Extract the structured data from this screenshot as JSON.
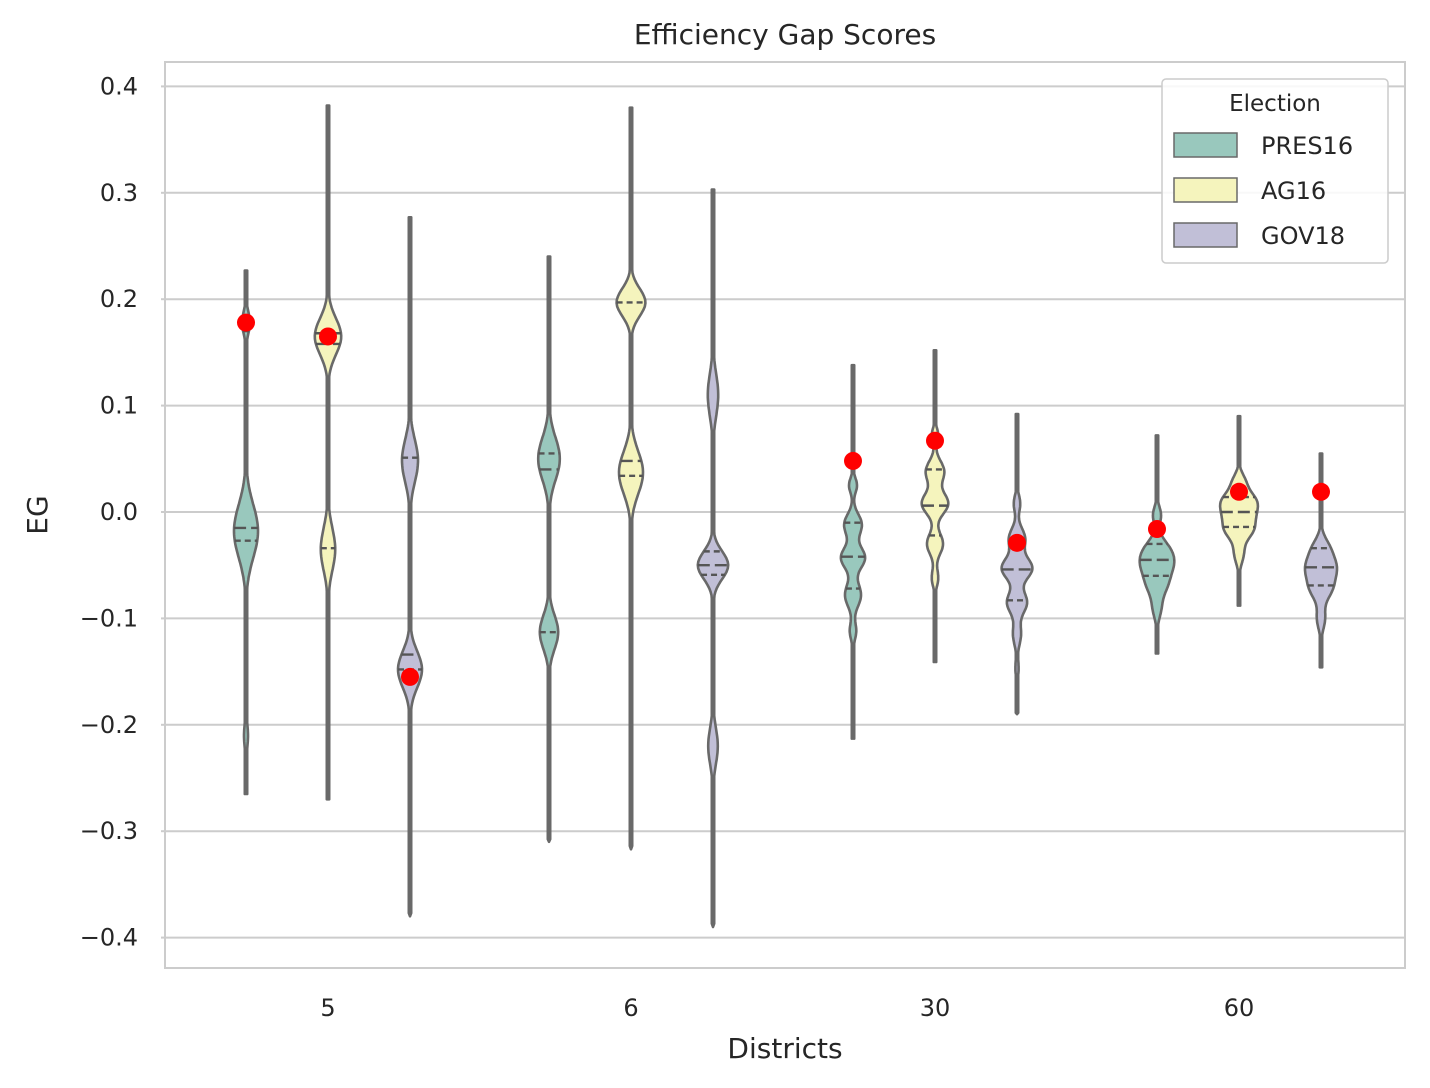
{
  "chart_data": {
    "type": "violin",
    "title": "Efficiency Gap Scores",
    "xlabel": "Districts",
    "ylabel": "EG",
    "categories": [
      "5",
      "6",
      "30",
      "60"
    ],
    "ylim": [
      -0.43,
      0.42
    ],
    "yticks": [
      -0.4,
      -0.3,
      -0.2,
      -0.1,
      0.0,
      0.1,
      0.2,
      0.3,
      0.4
    ],
    "ytick_labels": [
      "−0.4",
      "−0.3",
      "−0.2",
      "−0.1",
      "0.0",
      "0.1",
      "0.2",
      "0.3",
      "0.4"
    ],
    "grid": true,
    "legend": {
      "title": "Election",
      "placement": "top-right"
    },
    "series": [
      {
        "name": "PRES16",
        "color": "#99c8bd",
        "violins": [
          {
            "min": -0.265,
            "max": 0.227,
            "q1": -0.027,
            "median": -0.015,
            "q3": 0.17,
            "modes": [
              [
                0.178,
                0.1,
                0.01
              ],
              [
                -0.018,
                0.3,
                0.025
              ],
              [
                -0.21,
                0.05,
                0.012
              ]
            ],
            "marker": 0.178
          },
          {
            "min": -0.31,
            "max": 0.24,
            "q1": -0.113,
            "median": 0.04,
            "q3": 0.055,
            "modes": [
              [
                0.05,
                0.27,
                0.02
              ],
              [
                -0.113,
                0.23,
                0.016
              ],
              [
                0.215,
                0.02,
                0.008
              ]
            ],
            "marker": null
          },
          {
            "min": -0.213,
            "max": 0.138,
            "q1": -0.072,
            "median": -0.042,
            "q3": -0.01,
            "modes": [
              [
                0.025,
                0.1,
                0.007
              ],
              [
                -0.012,
                0.22,
                0.01
              ],
              [
                -0.043,
                0.3,
                0.01
              ],
              [
                -0.078,
                0.2,
                0.011
              ],
              [
                -0.112,
                0.08,
                0.008
              ]
            ],
            "marker": 0.048
          },
          {
            "min": -0.133,
            "max": 0.072,
            "q1": -0.06,
            "median": -0.045,
            "q3": -0.03,
            "modes": [
              [
                -0.003,
                0.1,
                0.008
              ],
              [
                -0.035,
                0.25,
                0.01
              ],
              [
                -0.05,
                0.3,
                0.01
              ],
              [
                -0.068,
                0.22,
                0.01
              ],
              [
                -0.09,
                0.1,
                0.01
              ]
            ],
            "marker": -0.016
          }
        ]
      },
      {
        "name": "AG16",
        "color": "#f5f4bd",
        "violins": [
          {
            "min": -0.27,
            "max": 0.382,
            "q1": -0.034,
            "median": 0.158,
            "q3": 0.168,
            "modes": [
              [
                0.165,
                0.33,
                0.017
              ],
              [
                -0.035,
                0.18,
                0.02
              ],
              [
                -0.23,
                0.02,
                0.01
              ]
            ],
            "marker": 0.165
          },
          {
            "min": -0.317,
            "max": 0.38,
            "q1": 0.034,
            "median": 0.048,
            "q3": 0.197,
            "modes": [
              [
                0.197,
                0.36,
                0.013
              ],
              [
                0.037,
                0.3,
                0.02
              ],
              [
                -0.125,
                0.02,
                0.012
              ]
            ],
            "marker": null
          },
          {
            "min": -0.141,
            "max": 0.152,
            "q1": -0.022,
            "median": 0.006,
            "q3": 0.04,
            "modes": [
              [
                0.072,
                0.08,
                0.007
              ],
              [
                0.038,
                0.23,
                0.01
              ],
              [
                0.008,
                0.33,
                0.01
              ],
              [
                -0.03,
                0.2,
                0.01
              ],
              [
                -0.062,
                0.08,
                0.008
              ]
            ],
            "marker": 0.067
          },
          {
            "min": -0.088,
            "max": 0.09,
            "q1": -0.014,
            "median": 0.0,
            "q3": 0.014,
            "modes": [
              [
                0.028,
                0.15,
                0.008
              ],
              [
                0.012,
                0.28,
                0.008
              ],
              [
                -0.002,
                0.35,
                0.01
              ],
              [
                -0.018,
                0.25,
                0.008
              ],
              [
                -0.038,
                0.12,
                0.01
              ]
            ],
            "marker": 0.019
          }
        ]
      },
      {
        "name": "GOV18",
        "color": "#c1bfd7",
        "violins": [
          {
            "min": -0.38,
            "max": 0.277,
            "q1": -0.148,
            "median": -0.134,
            "q3": 0.051,
            "modes": [
              [
                0.048,
                0.2,
                0.02
              ],
              [
                -0.148,
                0.3,
                0.017
              ],
              [
                0.24,
                0.03,
                0.015
              ],
              [
                -0.34,
                0.01,
                0.015
              ]
            ],
            "marker": -0.155
          },
          {
            "min": -0.39,
            "max": 0.303,
            "q1": -0.059,
            "median": -0.05,
            "q3": -0.037,
            "modes": [
              [
                -0.05,
                0.38,
                0.013
              ],
              [
                0.11,
                0.13,
                0.02
              ],
              [
                -0.22,
                0.12,
                0.017
              ]
            ],
            "marker": null
          },
          {
            "min": -0.19,
            "max": 0.092,
            "q1": -0.083,
            "median": -0.054,
            "q3": -0.03,
            "modes": [
              [
                0.008,
                0.08,
                0.008
              ],
              [
                -0.025,
                0.2,
                0.01
              ],
              [
                -0.053,
                0.38,
                0.01
              ],
              [
                -0.085,
                0.25,
                0.01
              ],
              [
                -0.115,
                0.1,
                0.01
              ],
              [
                -0.147,
                0.04,
                0.008
              ]
            ],
            "marker": -0.029
          },
          {
            "min": -0.146,
            "max": 0.055,
            "q1": -0.069,
            "median": -0.052,
            "q3": -0.034,
            "modes": [
              [
                -0.035,
                0.2,
                0.01
              ],
              [
                -0.053,
                0.32,
                0.01
              ],
              [
                -0.072,
                0.25,
                0.01
              ],
              [
                -0.1,
                0.1,
                0.01
              ]
            ],
            "marker": 0.019
          }
        ]
      }
    ]
  }
}
